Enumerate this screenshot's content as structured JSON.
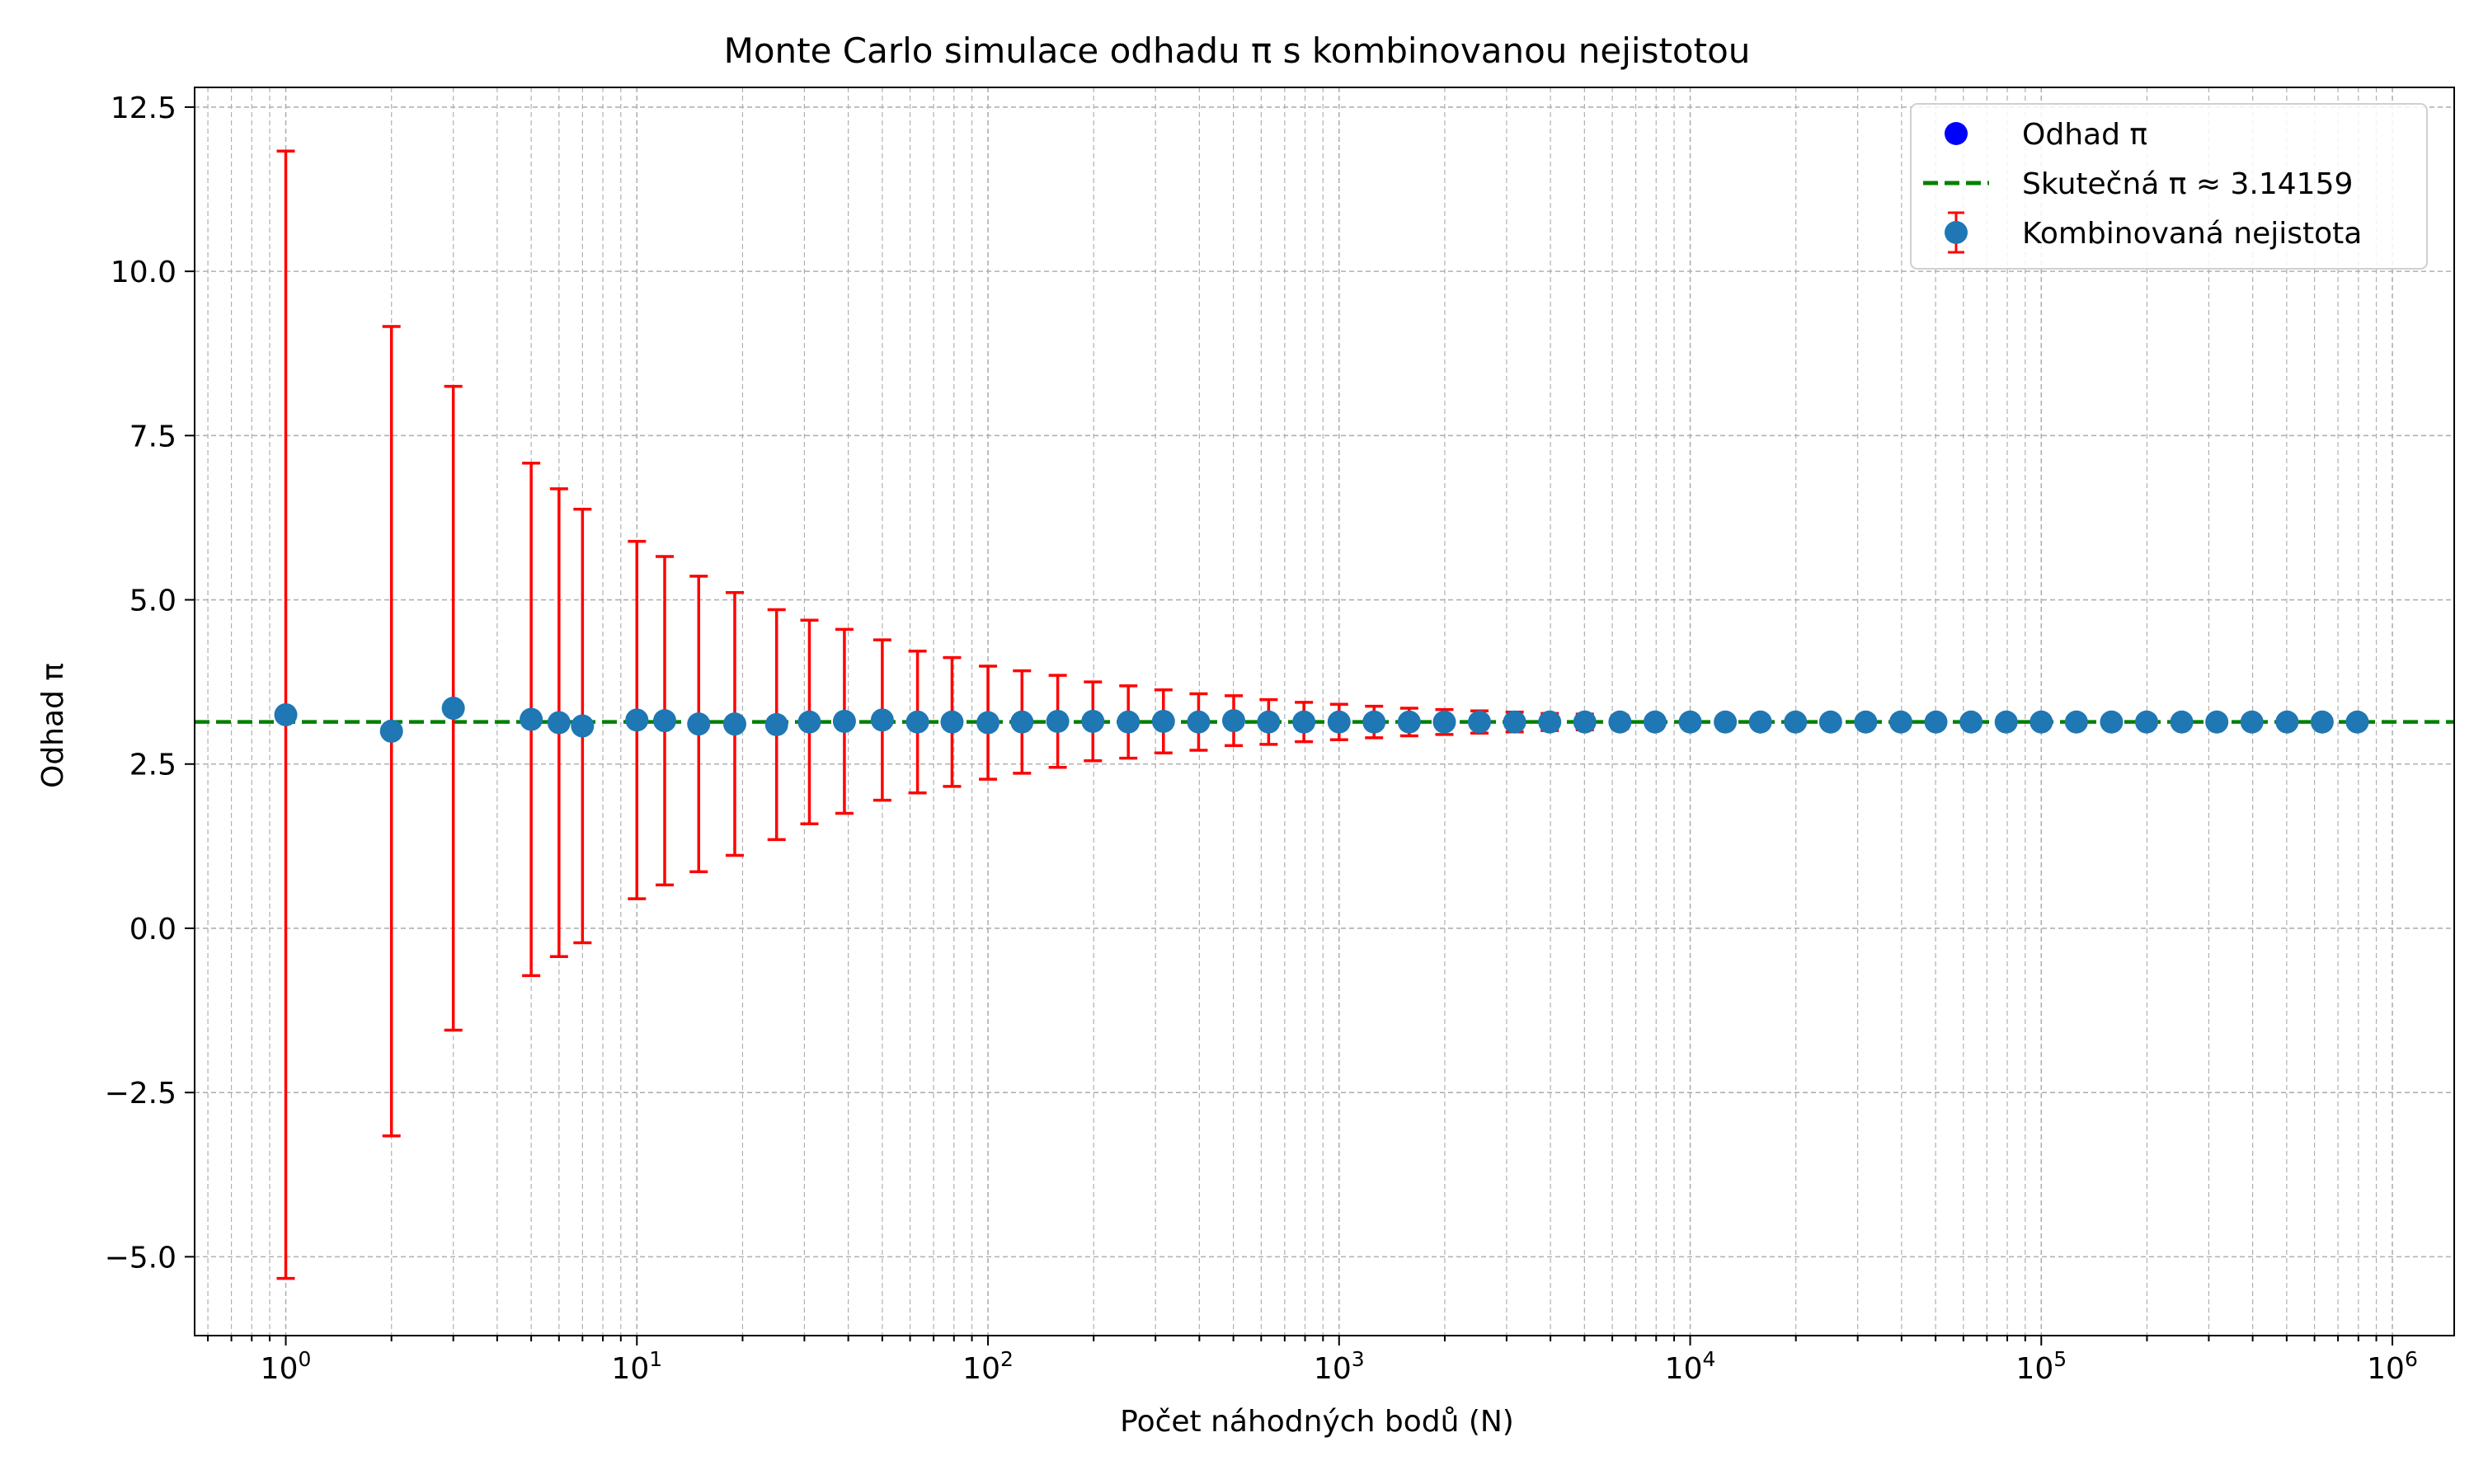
{
  "chart_data": {
    "type": "scatter",
    "title": "Monte Carlo simulace odhadu π s kombinovanou nejistotou",
    "xlabel": "Počet náhodných bodů (N)",
    "ylabel": "Odhad π",
    "x_scale": "log",
    "xlim": [
      0.55,
      1500000
    ],
    "ylim": [
      -6.2,
      12.8
    ],
    "grid": true,
    "legend_position": "top-right",
    "x_ticks": [
      {
        "base": "10",
        "exp": "0",
        "value": 1
      },
      {
        "base": "10",
        "exp": "1",
        "value": 10
      },
      {
        "base": "10",
        "exp": "2",
        "value": 100
      },
      {
        "base": "10",
        "exp": "3",
        "value": 1000
      },
      {
        "base": "10",
        "exp": "4",
        "value": 10000
      },
      {
        "base": "10",
        "exp": "5",
        "value": 100000
      },
      {
        "base": "10",
        "exp": "6",
        "value": 1000000
      }
    ],
    "y_ticks": [
      {
        "label": "−5.0",
        "value": -5
      },
      {
        "label": "−2.5",
        "value": -2.5
      },
      {
        "label": "0.0",
        "value": 0
      },
      {
        "label": "2.5",
        "value": 2.5
      },
      {
        "label": "5.0",
        "value": 5
      },
      {
        "label": "7.5",
        "value": 7.5
      },
      {
        "label": "10.0",
        "value": 10
      },
      {
        "label": "12.5",
        "value": 12.5
      }
    ],
    "legend": [
      {
        "label": "Odhad π",
        "kind": "marker",
        "color": "#0000ff"
      },
      {
        "label": "Skutečná π ≈ 3.14159",
        "kind": "dashed-line",
        "color": "#008000"
      },
      {
        "label": "Kombinovaná nejistota",
        "kind": "errorbar",
        "color": "#1f77b4",
        "error_color": "#ff0000"
      }
    ],
    "reference_line": {
      "y": 3.14159,
      "color": "#008000"
    },
    "colors": {
      "points": "#1f77b4",
      "error_bars": "#ff0000",
      "reference": "#008000",
      "legend_marker": "#0000ff"
    },
    "series": [
      {
        "x": [
          1,
          2,
          3,
          5,
          6,
          7,
          10,
          12,
          15,
          19,
          25,
          31,
          39,
          50,
          63,
          79,
          100,
          125,
          158,
          199,
          251,
          316,
          398,
          501,
          630,
          794,
          1000,
          1258,
          1584,
          1995,
          2511,
          3162,
          3981,
          5011,
          6309,
          7943,
          10000,
          12589,
          15848,
          19952,
          25118,
          31622,
          39810,
          50118,
          63095,
          79432,
          100000,
          125892,
          158489,
          199526,
          251188,
          316227,
          398107,
          501187,
          630957,
          794328
        ],
        "y": [
          3.25,
          3.0,
          3.35,
          3.18,
          3.13,
          3.08,
          3.17,
          3.16,
          3.11,
          3.11,
          3.1,
          3.14,
          3.15,
          3.17,
          3.14,
          3.14,
          3.13,
          3.14,
          3.15,
          3.15,
          3.14,
          3.15,
          3.14,
          3.16,
          3.14,
          3.14,
          3.14,
          3.14,
          3.14,
          3.14,
          3.14,
          3.14,
          3.14,
          3.14,
          3.14,
          3.14,
          3.14,
          3.14,
          3.14,
          3.14,
          3.14,
          3.14,
          3.14,
          3.14,
          3.14,
          3.14,
          3.14,
          3.14,
          3.14,
          3.14,
          3.14,
          3.14,
          3.14,
          3.14,
          3.14,
          3.14
        ],
        "error": [
          8.58,
          6.16,
          4.9,
          3.9,
          3.56,
          3.3,
          2.72,
          2.5,
          2.25,
          2.0,
          1.75,
          1.55,
          1.4,
          1.22,
          1.08,
          0.98,
          0.86,
          0.78,
          0.7,
          0.6,
          0.55,
          0.48,
          0.43,
          0.38,
          0.34,
          0.3,
          0.27,
          0.24,
          0.21,
          0.19,
          0.17,
          0.15,
          0.13,
          0.12,
          0.1,
          0.09,
          0.085,
          0.07,
          0.06,
          0.05,
          0.045,
          0.04,
          0.035,
          0.03,
          0.027,
          0.024,
          0.021,
          0.019,
          0.017,
          0.015,
          0.013,
          0.012,
          0.011,
          0.01,
          0.009,
          0.008
        ]
      }
    ]
  }
}
